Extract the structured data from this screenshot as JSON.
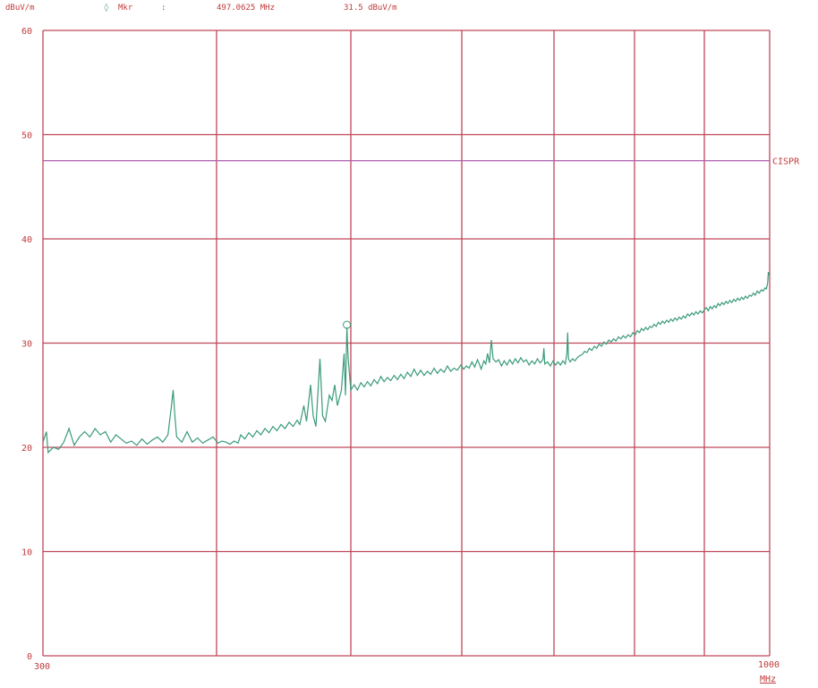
{
  "header": {
    "unit": "dBuV/m",
    "marker_symbol": "◊",
    "marker_label": "Mkr",
    "marker_sep": ":",
    "marker_freq": "497.0625 MHz",
    "marker_level": "31.5 dBuV/m"
  },
  "chart_data": {
    "type": "line",
    "title": "",
    "xlabel": "MHz",
    "ylabel": "dBuV/m",
    "xlim": [
      300,
      1000
    ],
    "ylim": [
      0,
      60
    ],
    "x_tick_labels": [
      "300",
      "1000"
    ],
    "y_tick_labels": [
      "0",
      "10",
      "20",
      "30",
      "40",
      "50",
      "60"
    ],
    "grid": true,
    "colors": {
      "grid": "#c0475a",
      "trace": "#3a9a7a",
      "limit": "#b060b0",
      "text": "#c03a3a"
    },
    "limit_line": {
      "name": "CISPR",
      "y": 47.5
    },
    "marker": {
      "x": 497.06,
      "y": 31.5
    },
    "series": [
      {
        "values": [
          [
            300,
            20.5
          ],
          [
            302,
            21.5
          ],
          [
            303,
            19.5
          ],
          [
            306,
            20
          ],
          [
            309,
            19.8
          ],
          [
            312,
            20.5
          ],
          [
            315,
            21.8
          ],
          [
            318,
            20.2
          ],
          [
            321,
            21
          ],
          [
            324,
            21.5
          ],
          [
            327,
            21
          ],
          [
            330,
            21.8
          ],
          [
            333,
            21.2
          ],
          [
            336,
            21.5
          ],
          [
            339,
            20.5
          ],
          [
            342,
            21.2
          ],
          [
            345,
            20.8
          ],
          [
            348,
            20.4
          ],
          [
            351,
            20.6
          ],
          [
            354,
            20.2
          ],
          [
            357,
            20.8
          ],
          [
            360,
            20.3
          ],
          [
            363,
            20.7
          ],
          [
            366,
            21
          ],
          [
            369,
            20.5
          ],
          [
            372,
            21.2
          ],
          [
            374,
            24
          ],
          [
            375,
            25.5
          ],
          [
            376,
            23
          ],
          [
            377,
            21
          ],
          [
            380,
            20.5
          ],
          [
            383,
            21.5
          ],
          [
            386,
            20.5
          ],
          [
            389,
            20.9
          ],
          [
            392,
            20.4
          ],
          [
            395,
            20.7
          ],
          [
            398,
            21
          ],
          [
            401,
            20.4
          ],
          [
            404,
            20.6
          ],
          [
            407,
            20.5
          ],
          [
            410,
            20.3
          ],
          [
            413,
            20.6
          ],
          [
            416,
            20.4
          ],
          [
            418,
            21.2
          ],
          [
            421,
            20.8
          ],
          [
            424,
            21.4
          ],
          [
            427,
            21
          ],
          [
            430,
            21.6
          ],
          [
            433,
            21.2
          ],
          [
            436,
            21.8
          ],
          [
            439,
            21.4
          ],
          [
            442,
            22
          ],
          [
            445,
            21.6
          ],
          [
            448,
            22.2
          ],
          [
            451,
            21.8
          ],
          [
            454,
            22.4
          ],
          [
            457,
            22
          ],
          [
            460,
            22.6
          ],
          [
            462,
            22.2
          ],
          [
            465,
            24
          ],
          [
            467,
            22.5
          ],
          [
            470,
            26
          ],
          [
            472,
            23
          ],
          [
            474,
            22
          ],
          [
            477,
            28.5
          ],
          [
            479,
            23
          ],
          [
            481,
            22.5
          ],
          [
            484,
            25
          ],
          [
            486,
            24.5
          ],
          [
            488,
            26
          ],
          [
            490,
            24
          ],
          [
            493,
            25.5
          ],
          [
            495,
            29
          ],
          [
            496,
            25
          ],
          [
            497.06,
            31.5
          ],
          [
            498,
            28.5
          ],
          [
            500,
            25.5
          ],
          [
            503,
            26
          ],
          [
            506,
            25.5
          ],
          [
            509,
            26.2
          ],
          [
            512,
            25.8
          ],
          [
            515,
            26.3
          ],
          [
            518,
            25.9
          ],
          [
            521,
            26.5
          ],
          [
            524,
            26.1
          ],
          [
            527,
            26.8
          ],
          [
            530,
            26.3
          ],
          [
            533,
            26.7
          ],
          [
            536,
            26.4
          ],
          [
            539,
            26.9
          ],
          [
            542,
            26.5
          ],
          [
            545,
            27
          ],
          [
            548,
            26.6
          ],
          [
            551,
            27.2
          ],
          [
            554,
            26.8
          ],
          [
            557,
            27.5
          ],
          [
            560,
            26.9
          ],
          [
            563,
            27.4
          ],
          [
            566,
            26.9
          ],
          [
            569,
            27.3
          ],
          [
            572,
            27
          ],
          [
            575,
            27.6
          ],
          [
            578,
            27.1
          ],
          [
            581,
            27.5
          ],
          [
            584,
            27.2
          ],
          [
            587,
            27.8
          ],
          [
            590,
            27.3
          ],
          [
            593,
            27.6
          ],
          [
            596,
            27.4
          ],
          [
            599,
            27.9
          ],
          [
            602,
            27.5
          ],
          [
            605,
            27.8
          ],
          [
            608,
            27.6
          ],
          [
            611,
            28.2
          ],
          [
            614,
            27.7
          ],
          [
            617,
            28.4
          ],
          [
            619,
            28
          ],
          [
            621,
            27.5
          ],
          [
            624,
            28.3
          ],
          [
            626,
            28
          ],
          [
            628,
            29
          ],
          [
            630,
            28.1
          ],
          [
            632,
            30.3
          ],
          [
            634,
            28.5
          ],
          [
            637,
            28.2
          ],
          [
            640,
            28.4
          ],
          [
            643,
            27.8
          ],
          [
            646,
            28.3
          ],
          [
            649,
            27.9
          ],
          [
            652,
            28.4
          ],
          [
            655,
            28
          ],
          [
            658,
            28.5
          ],
          [
            661,
            28.1
          ],
          [
            664,
            28.6
          ],
          [
            667,
            28.2
          ],
          [
            670,
            28.4
          ],
          [
            673,
            27.9
          ],
          [
            676,
            28.3
          ],
          [
            679,
            28
          ],
          [
            682,
            28.5
          ],
          [
            685,
            28.1
          ],
          [
            688,
            28.4
          ],
          [
            689,
            29.5
          ],
          [
            690,
            28
          ],
          [
            693,
            28.2
          ],
          [
            696,
            27.8
          ],
          [
            699,
            28.3
          ],
          [
            702,
            27.9
          ],
          [
            705,
            28.2
          ],
          [
            708,
            27.9
          ],
          [
            711,
            28.3
          ],
          [
            714,
            28
          ],
          [
            716,
            29
          ],
          [
            717,
            31
          ],
          [
            718,
            28.5
          ],
          [
            720,
            28.2
          ],
          [
            723,
            28.5
          ],
          [
            726,
            28.3
          ],
          [
            729,
            28.6
          ],
          [
            732,
            28.8
          ],
          [
            735,
            28.9
          ],
          [
            738,
            29.2
          ],
          [
            741,
            29.1
          ],
          [
            744,
            29.5
          ],
          [
            747,
            29.3
          ],
          [
            750,
            29.7
          ],
          [
            753,
            29.5
          ],
          [
            756,
            29.9
          ],
          [
            759,
            29.7
          ],
          [
            762,
            30.1
          ],
          [
            765,
            29.9
          ],
          [
            768,
            30.3
          ],
          [
            771,
            30.1
          ],
          [
            774,
            30.4
          ],
          [
            777,
            30.2
          ],
          [
            780,
            30.6
          ],
          [
            783,
            30.4
          ],
          [
            786,
            30.7
          ],
          [
            789,
            30.5
          ],
          [
            792,
            30.8
          ],
          [
            795,
            30.6
          ],
          [
            798,
            31
          ],
          [
            801,
            30.8
          ],
          [
            804,
            31.2
          ],
          [
            807,
            31
          ],
          [
            810,
            31.4
          ],
          [
            813,
            31.2
          ],
          [
            816,
            31.5
          ],
          [
            819,
            31.3
          ],
          [
            822,
            31.6
          ],
          [
            825,
            31.5
          ],
          [
            828,
            31.8
          ],
          [
            831,
            31.6
          ],
          [
            834,
            32
          ],
          [
            837,
            31.8
          ],
          [
            840,
            32.1
          ],
          [
            843,
            31.9
          ],
          [
            846,
            32.2
          ],
          [
            849,
            32
          ],
          [
            852,
            32.3
          ],
          [
            855,
            32.1
          ],
          [
            858,
            32.4
          ],
          [
            861,
            32.2
          ],
          [
            864,
            32.5
          ],
          [
            867,
            32.3
          ],
          [
            870,
            32.6
          ],
          [
            873,
            32.4
          ],
          [
            876,
            32.8
          ],
          [
            879,
            32.6
          ],
          [
            882,
            32.9
          ],
          [
            885,
            32.7
          ],
          [
            888,
            33
          ],
          [
            891,
            32.8
          ],
          [
            894,
            33.1
          ],
          [
            897,
            32.9
          ],
          [
            900,
            33.2
          ],
          [
            903,
            33.4
          ],
          [
            906,
            33.1
          ],
          [
            909,
            33.5
          ],
          [
            912,
            33.3
          ],
          [
            915,
            33.6
          ],
          [
            918,
            33.4
          ],
          [
            921,
            33.8
          ],
          [
            924,
            33.6
          ],
          [
            927,
            33.9
          ],
          [
            930,
            33.7
          ],
          [
            933,
            34
          ],
          [
            936,
            33.8
          ],
          [
            939,
            34.1
          ],
          [
            942,
            33.9
          ],
          [
            945,
            34.2
          ],
          [
            948,
            34
          ],
          [
            951,
            34.3
          ],
          [
            954,
            34.1
          ],
          [
            957,
            34.4
          ],
          [
            960,
            34.2
          ],
          [
            963,
            34.5
          ],
          [
            966,
            34.3
          ],
          [
            969,
            34.6
          ],
          [
            972,
            34.5
          ],
          [
            975,
            34.8
          ],
          [
            978,
            34.6
          ],
          [
            981,
            35
          ],
          [
            984,
            34.8
          ],
          [
            987,
            35.1
          ],
          [
            990,
            35
          ],
          [
            993,
            35.3
          ],
          [
            995,
            35.2
          ],
          [
            997,
            35.8
          ],
          [
            998,
            36.8
          ],
          [
            1000,
            36.5
          ]
        ]
      }
    ]
  }
}
